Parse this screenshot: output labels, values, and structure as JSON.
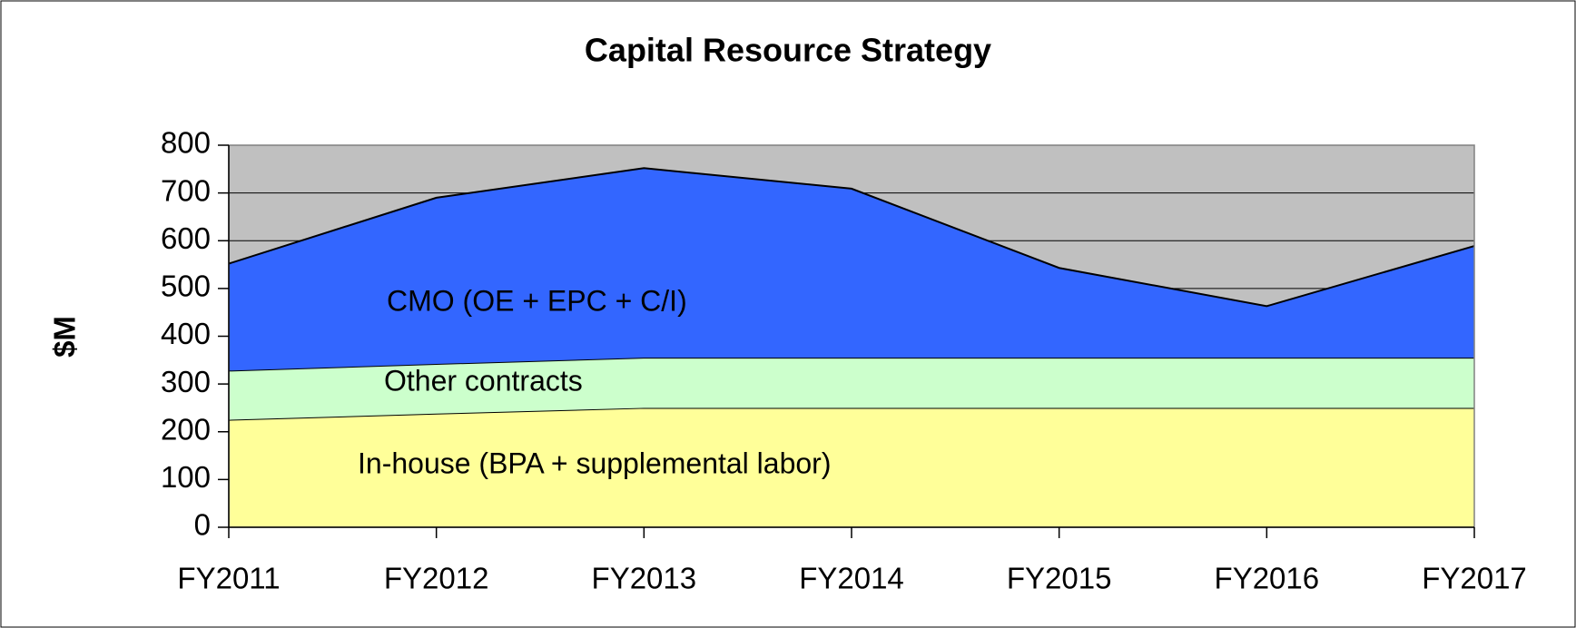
{
  "chart_data": {
    "type": "stacked_area",
    "title": "Capital Resource Strategy",
    "y_label": "$M",
    "categories": [
      "FY2011",
      "FY2012",
      "FY2013",
      "FY2014",
      "FY2015",
      "FY2016",
      "FY2017"
    ],
    "series": [
      {
        "name": "In-house (BPA + supplemental labor)",
        "color": "#ffff99",
        "values": [
          225,
          238,
          250,
          250,
          250,
          250,
          250
        ]
      },
      {
        "name": "Other contracts",
        "color": "#ccffcc",
        "values": [
          103,
          104,
          105,
          105,
          105,
          105,
          105
        ]
      },
      {
        "name": "CMO (OE + EPC + C/I)",
        "color": "#3366ff",
        "values": [
          224,
          348,
          397,
          354,
          188,
          108,
          234
        ]
      }
    ],
    "ylim": [
      0,
      800
    ],
    "yticks": [
      0,
      100,
      200,
      300,
      400,
      500,
      600,
      700,
      800
    ],
    "grid": true,
    "plot_background": "#c0c0c0"
  }
}
